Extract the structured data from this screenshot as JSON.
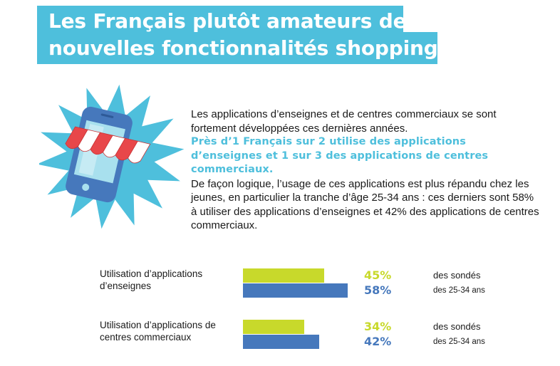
{
  "title": {
    "line1": "Les Français plutôt amateurs des",
    "line2": "nouvelles fonctionnalités shopping"
  },
  "body": {
    "para1": "Les applications d’enseignes et de centres commerciaux se sont fortement développées ces dernières années.",
    "highlight": "Près d’1 Français sur 2 utilise des applications d’enseignes et 1 sur 3 des applications de centres commerciaux.",
    "para2": "De façon logique, l’usage de ces applications est plus répandu chez les jeunes, en particulier la tranche d’âge 25-34 ans : ces derniers sont 58% à utiliser des applications d’enseignes et 42% des applications de centres commerciaux."
  },
  "colors": {
    "accent": "#4ebfdc",
    "all_respondents": "#c8d92b",
    "age_25_34": "#4678bc",
    "star": "#4ebfdc",
    "phone": "#4678bc",
    "awning_red": "#e8474a"
  },
  "icons": [
    "star-burst-icon",
    "smartphone-icon",
    "shop-awning-icon"
  ],
  "chart_data": {
    "type": "bar",
    "orientation": "horizontal",
    "categories": [
      "Utilisation d’applications d’enseignes",
      "Utilisation d’applications de centres commerciaux"
    ],
    "series": [
      {
        "name": "des sondés",
        "values": [
          45,
          34
        ],
        "labels": [
          "45%",
          "34%"
        ],
        "color": "#c8d92b"
      },
      {
        "name": "des 25-34 ans",
        "values": [
          58,
          42
        ],
        "labels": [
          "58%",
          "42%"
        ],
        "color": "#4678bc"
      }
    ],
    "unit": "%",
    "xlim": [
      0,
      100
    ],
    "grid": false
  }
}
